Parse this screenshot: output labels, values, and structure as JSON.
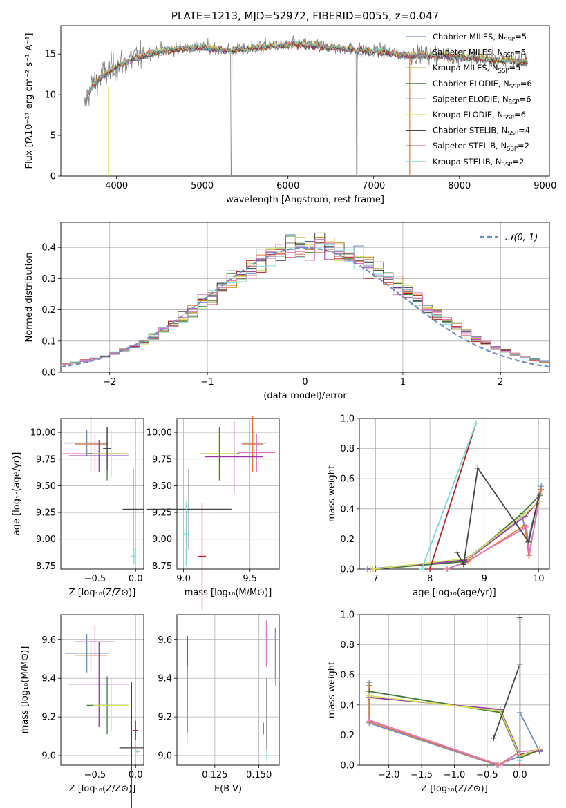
{
  "chart_data": [
    {
      "id": "spectrum",
      "type": "line",
      "title": "PLATE=1213, MJD=52972, FIBERID=0055, z=0.047",
      "xlabel": "wavelength [Angstrom, rest frame]",
      "ylabel": "Flux [fλ10⁻¹⁷ erg cm⁻² s⁻¹ A⁻¹]",
      "xlim": [
        3350,
        9050
      ],
      "ylim": [
        0,
        18.5
      ],
      "xticks": [
        4000,
        5000,
        6000,
        7000,
        8000,
        9000
      ],
      "yticks": [
        0,
        5,
        10,
        15
      ],
      "legend_position": "right",
      "legend": [
        {
          "label": "Chabrier MILES, N",
          "sub": "SSP",
          "suffix": "=5",
          "color": "#6c8ebf"
        },
        {
          "label": "Salpeter MILES, N",
          "sub": "SSP",
          "suffix": "=5",
          "color": "#e07b39"
        },
        {
          "label": "Kroupa MILES, N",
          "sub": "SSP",
          "suffix": "=5",
          "color": "#b8860b"
        },
        {
          "label": "Chabrier ELODIE, N",
          "sub": "SSP",
          "suffix": "=6",
          "color": "#3d7a3d"
        },
        {
          "label": "Salpeter ELODIE, N",
          "sub": "SSP",
          "suffix": "=6",
          "color": "#9b30b0"
        },
        {
          "label": "Kroupa ELODIE, N",
          "sub": "SSP",
          "suffix": "=6",
          "color": "#d4e157"
        },
        {
          "label": "Chabrier STELIB, N",
          "sub": "SSP",
          "suffix": "=4",
          "color": "#444444"
        },
        {
          "label": "Salpeter STELIB, N",
          "sub": "SSP",
          "suffix": "=2",
          "color": "#b22222"
        },
        {
          "label": "Kroupa STELIB, N",
          "sub": "SSP",
          "suffix": "=2",
          "color": "#7fd6d6"
        }
      ],
      "data_color": "#808080",
      "continuum": [
        [
          3620,
          8.5
        ],
        [
          3680,
          10.5
        ],
        [
          3750,
          11.5
        ],
        [
          3850,
          12.5
        ],
        [
          3950,
          13.2
        ],
        [
          4050,
          13.8
        ],
        [
          4200,
          14.5
        ],
        [
          4350,
          15.0
        ],
        [
          4500,
          15.4
        ],
        [
          4700,
          15.7
        ],
        [
          4900,
          15.9
        ],
        [
          5100,
          15.8
        ],
        [
          5300,
          15.5
        ],
        [
          5500,
          15.7
        ],
        [
          5700,
          15.9
        ],
        [
          5900,
          16.1
        ],
        [
          6100,
          16.3
        ],
        [
          6300,
          16.1
        ],
        [
          6500,
          15.9
        ],
        [
          6700,
          15.7
        ],
        [
          6900,
          15.5
        ],
        [
          7100,
          15.3
        ],
        [
          7300,
          15.0
        ],
        [
          7500,
          14.9
        ],
        [
          7700,
          14.9
        ],
        [
          7900,
          14.8
        ],
        [
          8100,
          14.7
        ],
        [
          8300,
          14.5
        ],
        [
          8500,
          14.3
        ],
        [
          8700,
          14.2
        ],
        [
          8800,
          14.1
        ]
      ]
    },
    {
      "id": "residuals",
      "type": "bar",
      "xlabel": "(data-model)/error",
      "ylabel": "Normed distribution",
      "xlim": [
        -2.5,
        2.5
      ],
      "ylim": [
        0,
        0.48
      ],
      "xticks": [
        -2,
        -1,
        0,
        1,
        2
      ],
      "yticks": [
        0.0,
        0.1,
        0.2,
        0.3,
        0.4
      ],
      "legend": [
        {
          "label": "𝒩(0, 1)",
          "color": "#6c8ebf",
          "style": "dashed"
        }
      ],
      "legend_position": "top-right",
      "bin_width": 0.1
    },
    {
      "id": "age_vs_Z",
      "type": "scatter",
      "xlabel": "Z [log₁₀(Z/Z⊙)]",
      "ylabel": "age  [log₁₀(age/yr)]",
      "xlim": [
        -0.92,
        0.1
      ],
      "ylim": [
        8.72,
        10.13
      ],
      "xticks": [
        -0.5,
        0.0
      ],
      "yticks": [
        8.75,
        9.0,
        9.25,
        9.5,
        9.75,
        10.0
      ],
      "points": [
        {
          "x": -0.6,
          "y": 9.9,
          "xerr": 0.28,
          "yerr": 0.12,
          "color": "#6c8ebf"
        },
        {
          "x": -0.55,
          "y": 9.89,
          "xerr": 0.2,
          "yerr": 0.26,
          "color": "#e07b39"
        },
        {
          "x": -0.5,
          "y": 9.8,
          "xerr": 0.4,
          "yerr": 0.18,
          "color": "#e377c2"
        },
        {
          "x": -0.35,
          "y": 9.8,
          "xerr": 0.25,
          "yerr": 0.25,
          "color": "#3d7a3d"
        },
        {
          "x": -0.45,
          "y": 9.78,
          "xerr": 0.37,
          "yerr": 0.15,
          "color": "#9b30b0"
        },
        {
          "x": -0.3,
          "y": 9.8,
          "xerr": 0.22,
          "yerr": 0.22,
          "color": "#d4e157"
        },
        {
          "x": -0.35,
          "y": 9.85,
          "xerr": 0.05,
          "yerr": 0.2,
          "color": "#444444"
        },
        {
          "x": -0.03,
          "y": 9.28,
          "xerr": 0.13,
          "yerr": 0.38,
          "color": "#444444"
        },
        {
          "x": -0.02,
          "y": 8.84,
          "xerr": 0.03,
          "yerr": 0.07,
          "color": "#7fd6d6"
        }
      ]
    },
    {
      "id": "age_vs_mass",
      "type": "scatter",
      "xlabel": "mass [log₁₀(M/M⊙)]",
      "ylabel": "",
      "xlim": [
        8.95,
        9.72
      ],
      "ylim": [
        8.72,
        10.13
      ],
      "xticks": [
        9.0,
        9.5
      ],
      "yticks": [
        8.75,
        9.0,
        9.25,
        9.5,
        9.75,
        10.0
      ],
      "points": [
        {
          "x": 9.53,
          "y": 9.9,
          "xerr": 0.1,
          "yerr": 0.12,
          "color": "#6c8ebf"
        },
        {
          "x": 9.52,
          "y": 9.89,
          "xerr": 0.08,
          "yerr": 0.26,
          "color": "#e07b39"
        },
        {
          "x": 9.55,
          "y": 9.81,
          "xerr": 0.14,
          "yerr": 0.18,
          "color": "#e377c2"
        },
        {
          "x": 9.27,
          "y": 9.8,
          "xerr": 0.15,
          "yerr": 0.25,
          "color": "#3d7a3d"
        },
        {
          "x": 9.38,
          "y": 9.77,
          "xerr": 0.22,
          "yerr": 0.34,
          "color": "#9b30b0"
        },
        {
          "x": 9.26,
          "y": 9.8,
          "xerr": 0.14,
          "yerr": 0.22,
          "color": "#d4e157"
        },
        {
          "x": 9.04,
          "y": 9.28,
          "xerr": 0.32,
          "yerr": 0.38,
          "color": "#444444"
        },
        {
          "x": 9.14,
          "y": 8.84,
          "xerr": 0.03,
          "yerr": 0.5,
          "color": "#b22222"
        },
        {
          "x": 9.02,
          "y": 9.05,
          "xerr": 0.02,
          "yerr": 0.3,
          "color": "#7fd6d6"
        }
      ]
    },
    {
      "id": "weight_vs_age",
      "type": "line",
      "xlabel": "age  [log₁₀(age/yr)]",
      "ylabel": "mass weight",
      "xlim": [
        6.7,
        10.2
      ],
      "ylim": [
        0,
        1.0
      ],
      "xticks": [
        7,
        8,
        9,
        10
      ],
      "yticks": [
        0.0,
        0.2,
        0.4,
        0.6,
        0.8,
        1.0
      ],
      "series": [
        {
          "color": "#6c8ebf",
          "x": [
            6.85,
            8.65,
            9.7,
            9.8,
            10.05
          ],
          "y": [
            0.0,
            0.06,
            0.35,
            0.18,
            0.55
          ]
        },
        {
          "color": "#e07b39",
          "x": [
            8.3,
            8.7,
            9.75,
            9.82,
            10.05
          ],
          "y": [
            0.0,
            0.05,
            0.29,
            0.09,
            0.53
          ]
        },
        {
          "color": "#e377c2",
          "x": [
            8.32,
            8.72,
            9.78,
            9.83,
            10.02
          ],
          "y": [
            0.0,
            0.06,
            0.28,
            0.09,
            0.5
          ]
        },
        {
          "color": "#3d7a3d",
          "x": [
            7.0,
            8.65,
            9.7,
            10.02
          ],
          "y": [
            0.0,
            0.05,
            0.37,
            0.49
          ]
        },
        {
          "color": "#9b30b0",
          "x": [
            6.9,
            8.68,
            9.75,
            10.0
          ],
          "y": [
            0.0,
            0.06,
            0.35,
            0.45
          ]
        },
        {
          "color": "#d4e157",
          "x": [
            6.95,
            8.7,
            9.72,
            10.02
          ],
          "y": [
            0.0,
            0.07,
            0.36,
            0.45
          ]
        },
        {
          "color": "#444444",
          "x": [
            8.5,
            8.62,
            8.88,
            9.82,
            10.0
          ],
          "y": [
            0.11,
            0.03,
            0.67,
            0.18,
            0.48
          ]
        },
        {
          "color": "#b22222",
          "x": [
            8.0,
            8.85
          ],
          "y": [
            0.0,
            0.97
          ]
        },
        {
          "color": "#7fd6d6",
          "x": [
            7.85,
            8.85
          ],
          "y": [
            0.0,
            0.97
          ]
        }
      ]
    },
    {
      "id": "mass_vs_Z",
      "type": "scatter",
      "xlabel": "Z [log₁₀(Z/Z⊙)]",
      "ylabel": "mass [log₁₀(M/M⊙)]",
      "xlim": [
        -0.92,
        0.1
      ],
      "ylim": [
        8.95,
        9.73
      ],
      "xticks": [
        -0.5,
        0.0
      ],
      "yticks": [
        9.0,
        9.2,
        9.4,
        9.6
      ],
      "points": [
        {
          "x": -0.6,
          "y": 9.53,
          "xerr": 0.27,
          "yerr": 0.1,
          "color": "#6c8ebf"
        },
        {
          "x": -0.55,
          "y": 9.52,
          "xerr": 0.2,
          "yerr": 0.08,
          "color": "#e07b39"
        },
        {
          "x": -0.5,
          "y": 9.59,
          "xerr": 0.25,
          "yerr": 0.08,
          "color": "#e377c2"
        },
        {
          "x": -0.35,
          "y": 9.26,
          "xerr": 0.25,
          "yerr": 0.15,
          "color": "#3d7a3d"
        },
        {
          "x": -0.45,
          "y": 9.37,
          "xerr": 0.37,
          "yerr": 0.22,
          "color": "#9b30b0"
        },
        {
          "x": -0.3,
          "y": 9.26,
          "xerr": 0.22,
          "yerr": 0.14,
          "color": "#d4e157"
        },
        {
          "x": -0.05,
          "y": 9.04,
          "xerr": 0.15,
          "yerr": 0.34,
          "color": "#444444"
        },
        {
          "x": 0.0,
          "y": 9.13,
          "xerr": 0.03,
          "yerr": 0.05,
          "color": "#b22222"
        },
        {
          "x": 0.02,
          "y": 9.02,
          "xerr": 0.03,
          "yerr": 0.01,
          "color": "#7fd6d6"
        }
      ]
    },
    {
      "id": "mass_vs_ebv",
      "type": "scatter",
      "xlabel": "E(B-V)",
      "ylabel": "",
      "xlim": [
        0.1035,
        0.1615
      ],
      "ylim": [
        8.95,
        9.73
      ],
      "xticks": [
        0.125,
        0.15
      ],
      "yticks": [
        9.0,
        9.2,
        9.4,
        9.6
      ],
      "points": [
        {
          "x": 0.1095,
          "y": 9.37,
          "yerr": 0.25,
          "color": "#9b30b0"
        },
        {
          "x": 0.1093,
          "y": 9.26,
          "yerr": 0.2,
          "color": "#d4e157"
        },
        {
          "x": 0.1593,
          "y": 9.53,
          "yerr": 0.13,
          "color": "#6c8ebf"
        },
        {
          "x": 0.1595,
          "y": 9.5,
          "yerr": 0.14,
          "color": "#e07b39"
        },
        {
          "x": 0.1542,
          "y": 9.58,
          "yerr": 0.12,
          "color": "#e377c2"
        },
        {
          "x": 0.1545,
          "y": 9.2,
          "yerr": 0.2,
          "color": "#444444"
        },
        {
          "x": 0.1525,
          "y": 9.14,
          "yerr": 0.03,
          "color": "#b22222"
        },
        {
          "x": 0.1545,
          "y": 9.0,
          "yerr": 0.03,
          "color": "#7fd6d6"
        }
      ]
    },
    {
      "id": "weight_vs_Z",
      "type": "line",
      "xlabel": "Z [log₁₀(Z/Z⊙)]",
      "ylabel": "mass weight",
      "xlim": [
        -2.45,
        0.45
      ],
      "ylim": [
        0,
        1.0
      ],
      "xticks": [
        -2.0,
        -1.5,
        -1.0,
        -0.5,
        0.0
      ],
      "yticks": [
        0.0,
        0.2,
        0.4,
        0.6,
        0.8,
        1.0
      ],
      "series": [
        {
          "color": "#6c8ebf",
          "x": [
            -2.3,
            -2.3,
            -0.35,
            0.0,
            0.0,
            0.3
          ],
          "y": [
            0.55,
            0.28,
            0.0,
            0.06,
            0.35,
            0.09
          ]
        },
        {
          "color": "#e07b39",
          "x": [
            -2.3,
            -2.3,
            -0.33,
            0.0,
            0.0,
            0.3
          ],
          "y": [
            0.53,
            0.29,
            0.0,
            0.09,
            0.05,
            0.1
          ]
        },
        {
          "color": "#e377c2",
          "x": [
            -2.3,
            -0.3,
            0.0,
            0.3
          ],
          "y": [
            0.3,
            0.0,
            0.09,
            0.1
          ]
        },
        {
          "color": "#3d7a3d",
          "x": [
            -2.3,
            -0.3,
            0.0,
            0.3
          ],
          "y": [
            0.49,
            0.35,
            0.05,
            0.1
          ]
        },
        {
          "color": "#9b30b0",
          "x": [
            -2.3,
            -0.3,
            0.0,
            0.3
          ],
          "y": [
            0.45,
            0.37,
            0.07,
            0.1
          ]
        },
        {
          "color": "#d4e157",
          "x": [
            -2.3,
            -0.3,
            0.0,
            0.3
          ],
          "y": [
            0.46,
            0.36,
            0.06,
            0.11
          ]
        },
        {
          "color": "#444444",
          "x": [
            -0.4,
            0.0,
            0.0
          ],
          "y": [
            0.18,
            0.67,
            0.98
          ]
        },
        {
          "color": "#b22222",
          "x": [
            0.0,
            0.0
          ],
          "y": [
            0.0,
            0.97
          ]
        },
        {
          "color": "#7fd6d6",
          "x": [
            0.0,
            0.0
          ],
          "y": [
            0.03,
            0.97
          ]
        }
      ]
    }
  ]
}
